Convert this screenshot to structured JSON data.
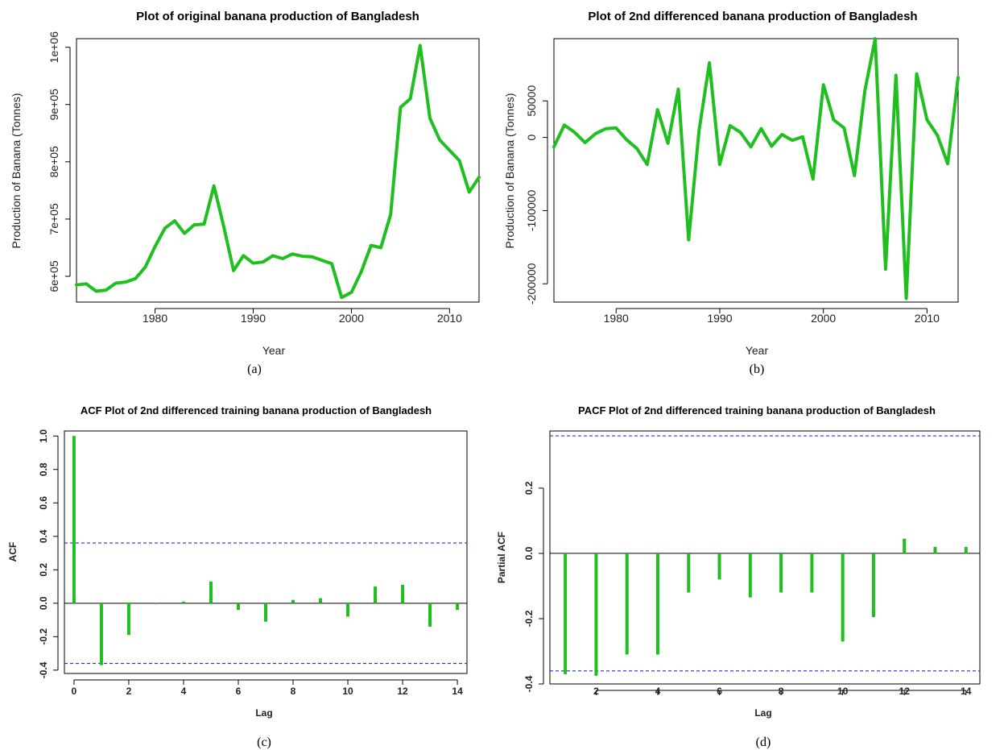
{
  "chart_data": [
    {
      "id": "a",
      "type": "line",
      "title": "Plot of original banana production of Bangladesh",
      "xlabel": "Year",
      "ylabel": "Production of Banana (Tonnes)",
      "caption": "(a)",
      "xlim": [
        1972,
        2013
      ],
      "ylim": [
        555000,
        1015000
      ],
      "xticks": [
        1980,
        1990,
        2000,
        2010
      ],
      "xtick_labels": [
        "1980",
        "1990",
        "2000",
        "2010"
      ],
      "yticks": [
        600000,
        700000,
        800000,
        900000,
        1000000
      ],
      "ytick_labels": [
        "6e+05",
        "7e+05",
        "8e+05",
        "9e+05",
        "1e+06"
      ],
      "color": "#1fbf1f",
      "x": [
        1972,
        1973,
        1974,
        1975,
        1976,
        1977,
        1978,
        1979,
        1980,
        1981,
        1982,
        1983,
        1984,
        1985,
        1986,
        1987,
        1988,
        1989,
        1990,
        1991,
        1992,
        1993,
        1994,
        1995,
        1996,
        1997,
        1998,
        1999,
        2000,
        2001,
        2002,
        2003,
        2004,
        2005,
        2006,
        2007,
        2008,
        2009,
        2010,
        2011,
        2012,
        2013
      ],
      "y": [
        585000,
        587000,
        574000,
        576000,
        588000,
        590000,
        596000,
        616000,
        652000,
        684000,
        697000,
        675000,
        690000,
        691000,
        758000,
        687000,
        610000,
        636000,
        623000,
        625000,
        636000,
        631000,
        639000,
        635000,
        634000,
        628000,
        622000,
        563000,
        572000,
        608000,
        654000,
        650000,
        708000,
        895000,
        910000,
        1003000,
        876000,
        838000,
        820000,
        802000,
        747000,
        773000
      ]
    },
    {
      "id": "b",
      "type": "line",
      "title": "Plot of 2nd differenced banana production of Bangladesh",
      "xlabel": "Year",
      "ylabel": "Production of Banana (Tonnes)",
      "caption": "(b)",
      "xlim": [
        1974,
        2013
      ],
      "ylim": [
        -225000,
        135000
      ],
      "xticks": [
        1980,
        1990,
        2000,
        2010
      ],
      "xtick_labels": [
        "1980",
        "1990",
        "2000",
        "2010"
      ],
      "yticks": [
        -200000,
        -100000,
        0,
        50000
      ],
      "ytick_labels": [
        "-200000",
        "-100000",
        "0",
        "50000"
      ],
      "color": "#1fbf1f",
      "x": [
        1974,
        1975,
        1976,
        1977,
        1978,
        1979,
        1980,
        1981,
        1982,
        1983,
        1984,
        1985,
        1986,
        1987,
        1988,
        1989,
        1990,
        1991,
        1992,
        1993,
        1994,
        1995,
        1996,
        1997,
        1998,
        1999,
        2000,
        2001,
        2002,
        2003,
        2004,
        2005,
        2006,
        2007,
        2008,
        2009,
        2010,
        2011,
        2012,
        2013
      ],
      "y": [
        -13000,
        17000,
        7000,
        -7000,
        5000,
        12000,
        13000,
        -3000,
        -15000,
        -37000,
        38000,
        -8000,
        66000,
        -140000,
        9000,
        102000,
        -37000,
        16000,
        7000,
        -13000,
        12000,
        -12000,
        4000,
        -4000,
        1000,
        -57000,
        72000,
        24000,
        13000,
        -52000,
        64000,
        135000,
        -180000,
        85000,
        -220000,
        87000,
        24000,
        3000,
        -36000,
        82000
      ]
    },
    {
      "id": "c",
      "type": "bar",
      "title": "ACF Plot of 2nd differenced training banana production of Bangladesh",
      "xlabel": "Lag",
      "ylabel": "ACF",
      "caption": "(c)",
      "xlim": [
        -0.35,
        14.35
      ],
      "ylim": [
        -0.42,
        1.03
      ],
      "xticks": [
        0,
        2,
        4,
        6,
        8,
        10,
        12,
        14
      ],
      "xtick_labels": [
        "0",
        "2",
        "4",
        "6",
        "8",
        "10",
        "12",
        "14"
      ],
      "yticks": [
        -0.4,
        -0.2,
        0.0,
        0.2,
        0.4,
        0.6,
        0.8,
        1.0
      ],
      "ytick_labels": [
        "-0.4",
        "-0.2",
        "0.0",
        "0.2",
        "0.4",
        "0.6",
        "0.8",
        "1.0"
      ],
      "ci": 0.36,
      "color": "#1fbf1f",
      "ci_color": "#2b2bd9",
      "x": [
        0,
        1,
        2,
        3,
        4,
        5,
        6,
        7,
        8,
        9,
        10,
        11,
        12,
        13,
        14
      ],
      "y": [
        1.0,
        -0.37,
        -0.19,
        -0.005,
        0.01,
        0.13,
        -0.04,
        -0.11,
        0.02,
        0.03,
        -0.08,
        0.1,
        0.11,
        -0.14,
        -0.04
      ]
    },
    {
      "id": "d",
      "type": "bar",
      "title": "PACF Plot of 2nd differenced training banana production of Bangladesh",
      "xlabel": "Lag",
      "ylabel": "Partial ACF",
      "caption": "(d)",
      "xlim": [
        0.5,
        14.45
      ],
      "ylim": [
        -0.4,
        0.375
      ],
      "xticks": [
        2,
        4,
        6,
        8,
        10,
        12,
        14
      ],
      "xtick_labels": [
        "2",
        "4",
        "6",
        "8",
        "10",
        "12",
        "14"
      ],
      "yticks": [
        -0.4,
        -0.2,
        0.0,
        0.2
      ],
      "ytick_labels": [
        "-0.4",
        "-0.2",
        "0.0",
        "0.2"
      ],
      "ci": 0.36,
      "color": "#1fbf1f",
      "ci_color": "#2b2bd9",
      "x": [
        1,
        2,
        3,
        4,
        5,
        6,
        7,
        8,
        9,
        10,
        11,
        12,
        13,
        14
      ],
      "y": [
        -0.37,
        -0.375,
        -0.31,
        -0.31,
        -0.12,
        -0.08,
        -0.135,
        -0.12,
        -0.12,
        -0.27,
        -0.195,
        0.045,
        0.02,
        0.02
      ]
    }
  ]
}
